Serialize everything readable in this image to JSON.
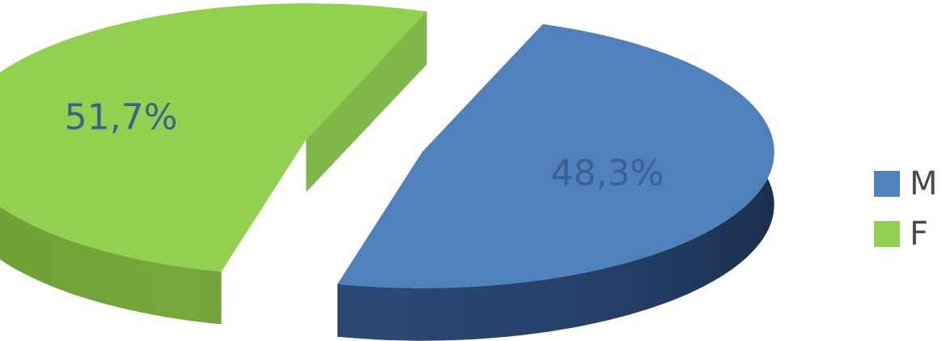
{
  "chart_data": {
    "type": "pie",
    "title": "",
    "style": "3d-exploded",
    "legend_position": "right",
    "slices": [
      {
        "label": "M",
        "value": 48.3,
        "value_label": "48,3%",
        "color": "#4F81BD"
      },
      {
        "label": "F",
        "value": 51.7,
        "value_label": "51,7%",
        "color": "#92D050"
      }
    ]
  }
}
